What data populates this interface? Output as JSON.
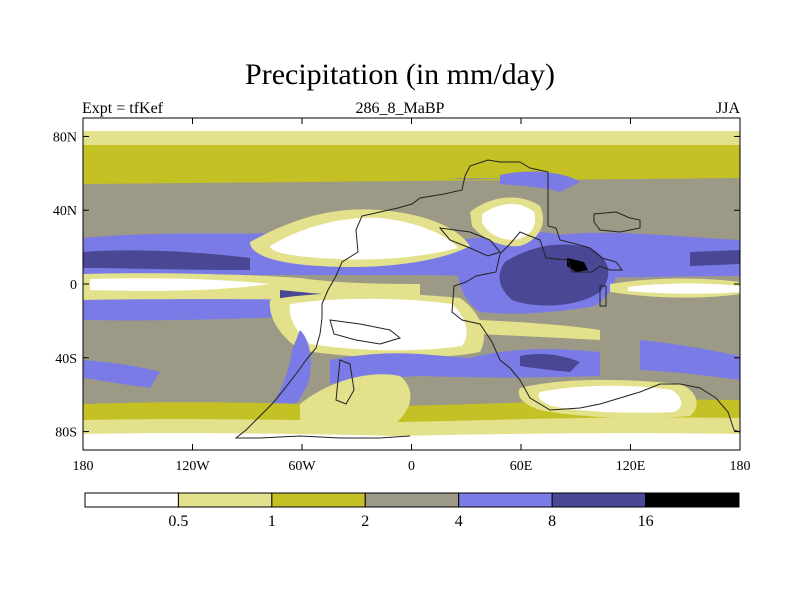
{
  "figure": {
    "title": "Precipitation (in mm/day)",
    "left_label": "Expt = tfKef",
    "center_label": "286_8_MaBP",
    "right_label": "JJA"
  },
  "map": {
    "projection": "cylindrical equidistant",
    "lon_range": [
      -180,
      180
    ],
    "lat_range": [
      -90,
      90
    ],
    "x_ticks": [
      {
        "value": -180,
        "label": "180"
      },
      {
        "value": -120,
        "label": "120W"
      },
      {
        "value": -60,
        "label": "60W"
      },
      {
        "value": 0,
        "label": "0"
      },
      {
        "value": 60,
        "label": "60E"
      },
      {
        "value": 120,
        "label": "120E"
      },
      {
        "value": 180,
        "label": "180"
      }
    ],
    "y_ticks": [
      {
        "value": 80,
        "label": "80N"
      },
      {
        "value": 40,
        "label": "40N"
      },
      {
        "value": 0,
        "label": "0"
      },
      {
        "value": -40,
        "label": "40S"
      },
      {
        "value": -80,
        "label": "80S"
      }
    ]
  },
  "colorbar": {
    "levels": [
      "0.5",
      "1",
      "2",
      "4",
      "8",
      "16"
    ],
    "colors": [
      "#ffffff",
      "#e3e18c",
      "#c4c124",
      "#9c9a86",
      "#7a7be6",
      "#4a4794",
      "#000000"
    ]
  },
  "chart_data": {
    "type": "heatmap",
    "variable": "Precipitation (in mm/day)",
    "experiment": "tfKef",
    "period": "286_8_MaBP",
    "season": "JJA",
    "contour_levels_mm_per_day": [
      0.5,
      1,
      2,
      4,
      8,
      16
    ],
    "band_colors": [
      "#ffffff",
      "#e3e18c",
      "#c4c124",
      "#9c9a86",
      "#7a7be6",
      "#4a4794",
      "#000000"
    ],
    "lon_range": [
      -180,
      180
    ],
    "lat_range": [
      -90,
      90
    ]
  }
}
